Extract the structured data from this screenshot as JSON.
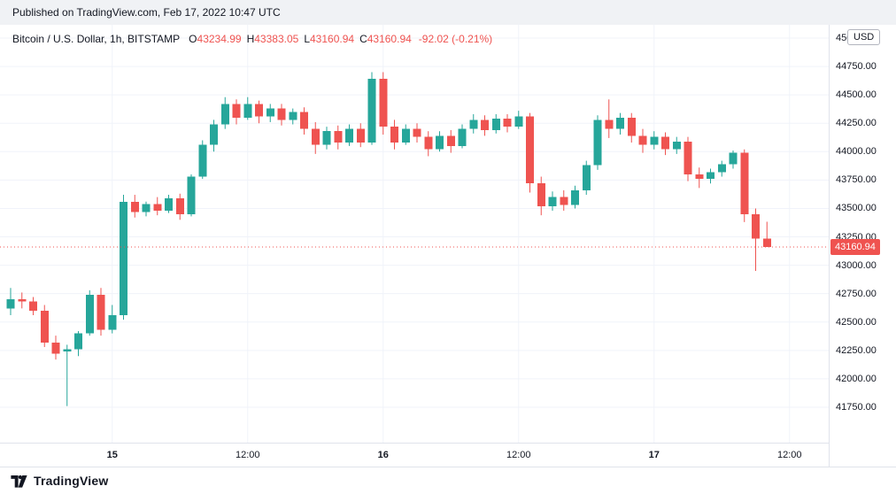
{
  "banner": {
    "text": "Published on TradingView.com, Feb 17, 2022 10:47 UTC"
  },
  "header": {
    "symbol": "Bitcoin / U.S. Dollar, 1h, BITSTAMP",
    "ohlc": [
      {
        "label": "O",
        "value": "43234.99"
      },
      {
        "label": "H",
        "value": "43383.05"
      },
      {
        "label": "L",
        "value": "43160.94"
      },
      {
        "label": "C",
        "value": "43160.94"
      }
    ],
    "change": "-92.02 (-0.21%)"
  },
  "price_axis": {
    "currency": "USD",
    "last_price": "43160.94",
    "labels": [
      "45000.00",
      "44750.00",
      "44500.00",
      "44250.00",
      "44000.00",
      "43750.00",
      "43500.00",
      "43250.00",
      "43000.00",
      "42750.00",
      "42500.00",
      "42250.00",
      "42000.00",
      "41750.00"
    ]
  },
  "time_axis": [
    {
      "i": 9,
      "label": "15",
      "day": true
    },
    {
      "i": 21,
      "label": "12:00",
      "day": false
    },
    {
      "i": 33,
      "label": "16",
      "day": true
    },
    {
      "i": 45,
      "label": "12:00",
      "day": false
    },
    {
      "i": 57,
      "label": "17",
      "day": true
    },
    {
      "i": 69,
      "label": "12:00",
      "day": false
    }
  ],
  "footer": {
    "brand": "TradingView"
  },
  "colors": {
    "up": "#26a69a",
    "down": "#ef5350",
    "grid": "#f0f3fa",
    "axis_text": "#131722",
    "accent_red": "#ef5350"
  },
  "chart_data": {
    "type": "candlestick",
    "title": "Bitcoin / U.S. Dollar, 1h, BITSTAMP",
    "exchange": "BITSTAMP",
    "interval": "1h",
    "start_time": "2022-02-14 15:00 UTC",
    "end_time": "2022-02-17 10:00 UTC",
    "ylim": [
      41438,
      45117
    ],
    "y_grid_step": 250,
    "last_price": 43160.94,
    "last_change": -92.02,
    "last_change_pct": -0.21,
    "ohlc_keys": [
      "open",
      "high",
      "low",
      "close"
    ],
    "candles": [
      [
        42620,
        42800,
        42560,
        42700
      ],
      [
        42700,
        42760,
        42620,
        42680
      ],
      [
        42680,
        42720,
        42560,
        42600
      ],
      [
        42600,
        42650,
        42280,
        42320
      ],
      [
        42320,
        42380,
        42170,
        42220
      ],
      [
        42240,
        42300,
        41760,
        42260
      ],
      [
        42260,
        42420,
        42200,
        42400
      ],
      [
        42400,
        42780,
        42380,
        42740
      ],
      [
        42740,
        42800,
        42380,
        42430
      ],
      [
        42430,
        42650,
        42400,
        42560
      ],
      [
        42560,
        43620,
        42520,
        43560
      ],
      [
        43560,
        43620,
        43420,
        43470
      ],
      [
        43470,
        43560,
        43430,
        43540
      ],
      [
        43540,
        43600,
        43440,
        43480
      ],
      [
        43480,
        43620,
        43460,
        43590
      ],
      [
        43590,
        43630,
        43400,
        43450
      ],
      [
        43450,
        43800,
        43430,
        43780
      ],
      [
        43780,
        44100,
        43760,
        44060
      ],
      [
        44060,
        44280,
        44000,
        44240
      ],
      [
        44240,
        44480,
        44200,
        44420
      ],
      [
        44420,
        44460,
        44240,
        44300
      ],
      [
        44300,
        44480,
        44280,
        44420
      ],
      [
        44420,
        44450,
        44250,
        44310
      ],
      [
        44310,
        44420,
        44260,
        44380
      ],
      [
        44380,
        44420,
        44230,
        44280
      ],
      [
        44280,
        44380,
        44240,
        44350
      ],
      [
        44350,
        44390,
        44150,
        44200
      ],
      [
        44200,
        44260,
        43980,
        44060
      ],
      [
        44060,
        44220,
        44020,
        44180
      ],
      [
        44180,
        44230,
        44020,
        44080
      ],
      [
        44080,
        44240,
        44050,
        44200
      ],
      [
        44200,
        44250,
        44040,
        44080
      ],
      [
        44080,
        44700,
        44060,
        44640
      ],
      [
        44640,
        44700,
        44150,
        44220
      ],
      [
        44220,
        44280,
        44020,
        44080
      ],
      [
        44080,
        44240,
        44060,
        44200
      ],
      [
        44200,
        44250,
        44080,
        44130
      ],
      [
        44130,
        44180,
        43960,
        44020
      ],
      [
        44020,
        44180,
        44000,
        44140
      ],
      [
        44140,
        44190,
        43990,
        44050
      ],
      [
        44050,
        44240,
        44030,
        44200
      ],
      [
        44200,
        44330,
        44160,
        44280
      ],
      [
        44280,
        44320,
        44140,
        44190
      ],
      [
        44190,
        44330,
        44160,
        44290
      ],
      [
        44290,
        44330,
        44170,
        44220
      ],
      [
        44220,
        44360,
        44200,
        44310
      ],
      [
        44310,
        44340,
        43640,
        43720
      ],
      [
        43720,
        43780,
        43440,
        43520
      ],
      [
        43520,
        43650,
        43480,
        43600
      ],
      [
        43600,
        43660,
        43480,
        43530
      ],
      [
        43530,
        43700,
        43500,
        43660
      ],
      [
        43660,
        43920,
        43620,
        43880
      ],
      [
        43880,
        44320,
        43840,
        44280
      ],
      [
        44280,
        44460,
        44120,
        44200
      ],
      [
        44200,
        44340,
        44150,
        44300
      ],
      [
        44300,
        44340,
        44080,
        44140
      ],
      [
        44140,
        44200,
        43990,
        44060
      ],
      [
        44060,
        44180,
        44020,
        44130
      ],
      [
        44130,
        44170,
        43970,
        44020
      ],
      [
        44020,
        44130,
        43980,
        44090
      ],
      [
        44090,
        44130,
        43740,
        43800
      ],
      [
        43800,
        43860,
        43680,
        43760
      ],
      [
        43760,
        43850,
        43720,
        43820
      ],
      [
        43820,
        43920,
        43780,
        43890
      ],
      [
        43890,
        44010,
        43850,
        43990
      ],
      [
        43990,
        44020,
        43380,
        43450
      ],
      [
        43450,
        43500,
        42950,
        43235
      ],
      [
        43234.99,
        43383.05,
        43160.94,
        43160.94
      ]
    ]
  }
}
